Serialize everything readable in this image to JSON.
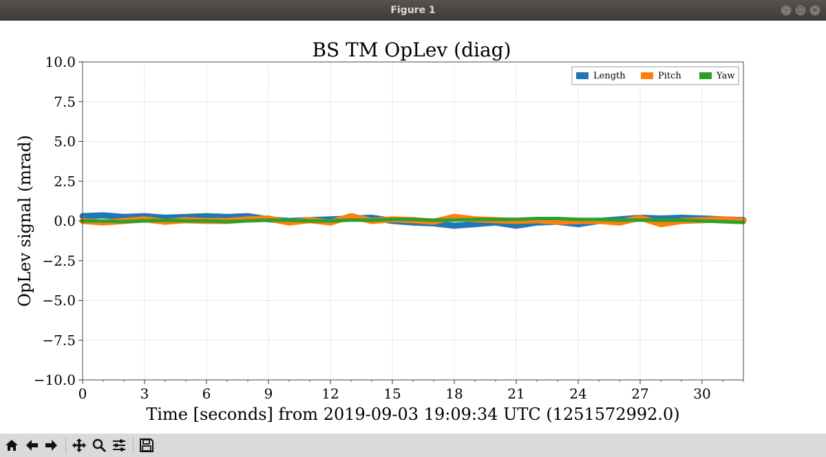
{
  "window": {
    "title": "Figure 1"
  },
  "window_buttons": {
    "minimize": "–",
    "maximize": "□",
    "close": "×"
  },
  "toolbar": {
    "buttons": [
      {
        "name": "home-button",
        "icon": "home-icon"
      },
      {
        "name": "back-button",
        "icon": "arrow-left-icon"
      },
      {
        "name": "forward-button",
        "icon": "arrow-right-icon"
      },
      {
        "name": "pan-button",
        "icon": "move-icon"
      },
      {
        "name": "zoom-button",
        "icon": "magnifier-icon"
      },
      {
        "name": "configure-subplots-button",
        "icon": "sliders-icon"
      },
      {
        "name": "save-button",
        "icon": "floppy-disk-icon"
      }
    ]
  },
  "chart_data": {
    "type": "line",
    "title": "BS TM OpLev (diag)",
    "xlabel": "Time [seconds] from 2019-09-03 19:09:34 UTC (1251572992.0)",
    "ylabel": "OpLev signal (mrad)",
    "xlim": [
      0,
      32
    ],
    "ylim": [
      -10,
      10
    ],
    "xticks": [
      0,
      3,
      6,
      9,
      12,
      15,
      18,
      21,
      24,
      27,
      30
    ],
    "xtick_labels": [
      "0",
      "3",
      "6",
      "9",
      "12",
      "15",
      "18",
      "21",
      "24",
      "27",
      "30"
    ],
    "yticks": [
      10,
      7.5,
      5,
      2.5,
      0,
      -2.5,
      -5,
      -7.5,
      -10
    ],
    "ytick_labels": [
      "10.0",
      "7.5",
      "5.0",
      "2.5",
      "0.0",
      "−2.5",
      "−5.0",
      "−7.5",
      "−10.0"
    ],
    "grid": true,
    "legend_position": "upper right",
    "series": [
      {
        "name": "Length",
        "color": "#1f77b4",
        "x": [
          0,
          1,
          2,
          3,
          4,
          5,
          6,
          7,
          8,
          9,
          10,
          11,
          12,
          13,
          14,
          15,
          16,
          17,
          18,
          19,
          20,
          21,
          22,
          23,
          24,
          25,
          26,
          27,
          28,
          29,
          30,
          31,
          32
        ],
        "y": [
          0.3,
          0.35,
          0.25,
          0.3,
          0.2,
          0.25,
          0.3,
          0.25,
          0.3,
          0.1,
          0.0,
          0.05,
          0.1,
          0.15,
          0.2,
          0.0,
          -0.1,
          -0.15,
          -0.3,
          -0.2,
          -0.1,
          -0.3,
          -0.1,
          -0.05,
          -0.2,
          0.0,
          0.1,
          0.2,
          0.15,
          0.2,
          0.15,
          0.1,
          0.05
        ]
      },
      {
        "name": "Pitch",
        "color": "#ff7f0e",
        "x": [
          0,
          1,
          2,
          3,
          4,
          5,
          6,
          7,
          8,
          9,
          10,
          11,
          12,
          13,
          14,
          15,
          16,
          17,
          18,
          19,
          20,
          21,
          22,
          23,
          24,
          25,
          26,
          27,
          28,
          29,
          30,
          31,
          32
        ],
        "y": [
          0.0,
          -0.1,
          0.0,
          0.1,
          -0.05,
          0.05,
          0.0,
          0.0,
          0.1,
          0.15,
          -0.1,
          0.05,
          -0.1,
          0.3,
          0.0,
          0.1,
          0.05,
          -0.05,
          0.25,
          0.1,
          0.05,
          0.0,
          0.05,
          -0.05,
          0.0,
          0.0,
          -0.1,
          0.2,
          -0.2,
          0.0,
          0.05,
          0.1,
          0.0
        ]
      },
      {
        "name": "Yaw",
        "color": "#2ca02c",
        "x": [
          0,
          1,
          2,
          3,
          4,
          5,
          6,
          7,
          8,
          9,
          10,
          11,
          12,
          13,
          14,
          15,
          16,
          17,
          18,
          19,
          20,
          21,
          22,
          23,
          24,
          25,
          26,
          27,
          28,
          29,
          30,
          31,
          32
        ],
        "y": [
          0.0,
          0.0,
          -0.05,
          0.0,
          0.05,
          0.0,
          0.0,
          -0.05,
          0.0,
          0.05,
          0.05,
          0.0,
          0.0,
          0.05,
          0.05,
          0.1,
          0.1,
          0.05,
          0.05,
          0.1,
          0.1,
          0.1,
          0.15,
          0.15,
          0.1,
          0.1,
          0.05,
          0.05,
          0.05,
          0.05,
          0.0,
          -0.05,
          -0.1
        ]
      }
    ]
  }
}
